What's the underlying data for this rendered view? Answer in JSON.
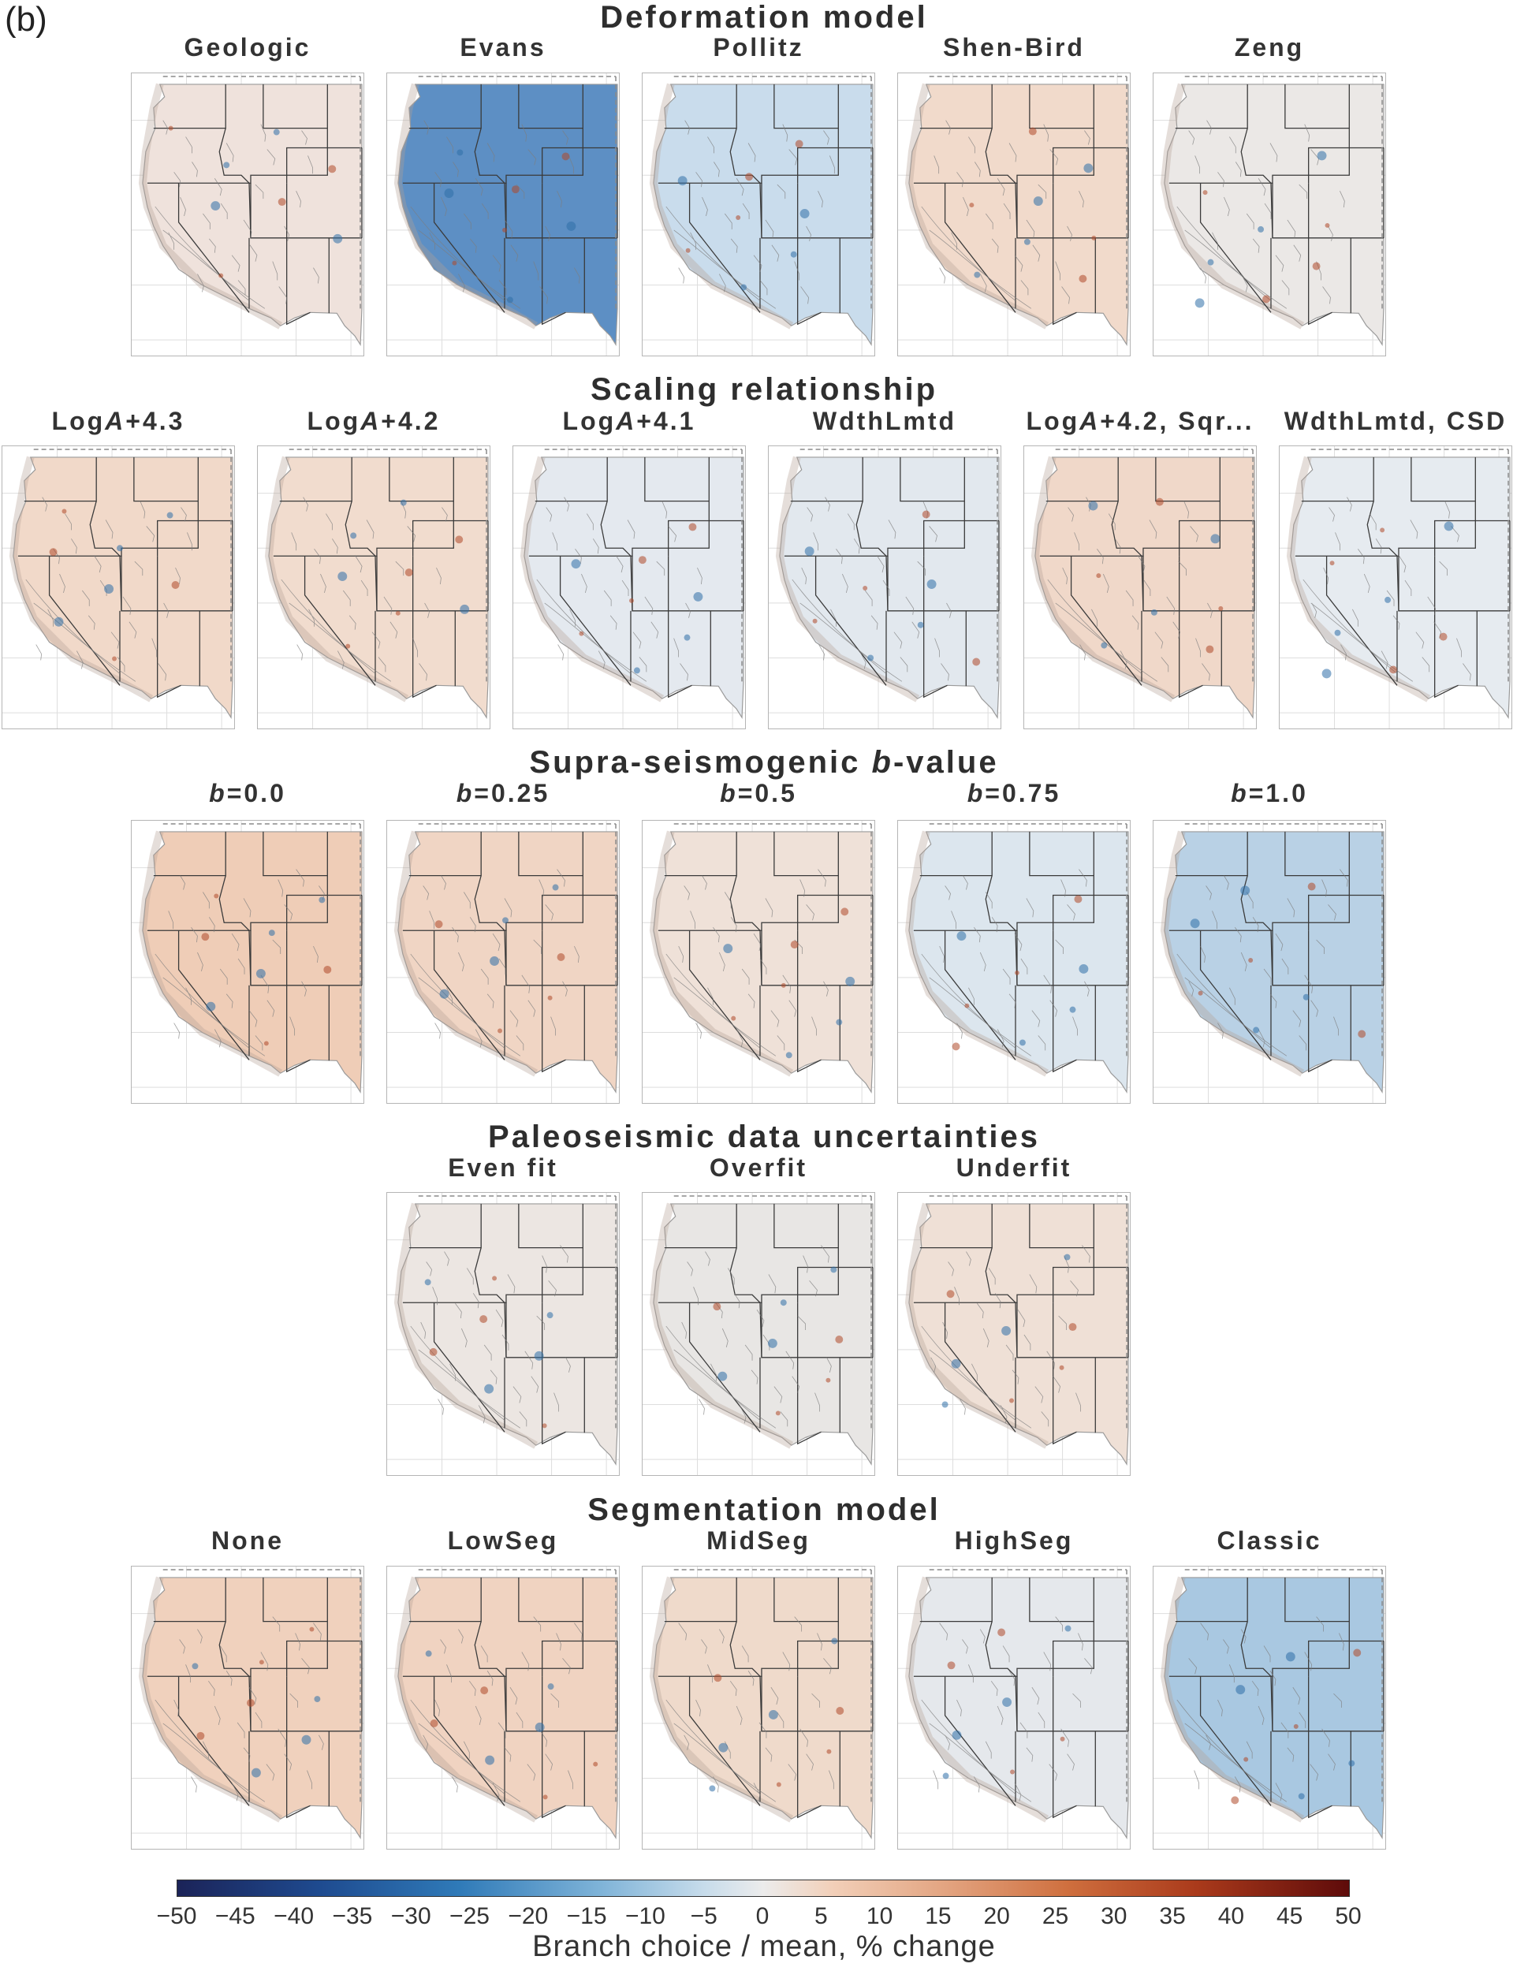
{
  "panel_label": "(b)",
  "groups": [
    {
      "title": "Deformation model",
      "branches": [
        {
          "label": "Geologic",
          "tint": "#efe2dc"
        },
        {
          "label": "Evans",
          "tint": "#5d8fc4"
        },
        {
          "label": "Pollitz",
          "tint": "#c9dcec"
        },
        {
          "label": "Shen-Bird",
          "tint": "#f1dacb"
        },
        {
          "label": "Zeng",
          "tint": "#ebe8e6"
        }
      ]
    },
    {
      "title": "Scaling relationship",
      "branches": [
        {
          "label": "LogA+4.3",
          "tint": "#f1d9c9"
        },
        {
          "label": "LogA+4.2",
          "tint": "#f1dcce"
        },
        {
          "label": "LogA+4.1",
          "tint": "#e4e9ef"
        },
        {
          "label": "WdthLmtd",
          "tint": "#e2e8ee"
        },
        {
          "label": "LogA+4.2, Sqr...",
          "tint": "#f0d8c9"
        },
        {
          "label": "WdthLmtd, CSD",
          "tint": "#e6ebf0"
        }
      ]
    },
    {
      "title": "Supra-seismogenic b-value",
      "branches": [
        {
          "label": "b=0.0",
          "tint": "#efcdb7"
        },
        {
          "label": "b=0.25",
          "tint": "#f0d5c4"
        },
        {
          "label": "b=0.5",
          "tint": "#efe1d8"
        },
        {
          "label": "b=0.75",
          "tint": "#dce6ee"
        },
        {
          "label": "b=1.0",
          "tint": "#b9d1e5"
        }
      ]
    },
    {
      "title": "Paleoseismic data uncertainties",
      "branches": [
        {
          "label": "Even fit",
          "tint": "#ece6e2"
        },
        {
          "label": "Overfit",
          "tint": "#e8e6e4"
        },
        {
          "label": "Underfit",
          "tint": "#efe0d6"
        }
      ]
    },
    {
      "title": "Segmentation model",
      "branches": [
        {
          "label": "None",
          "tint": "#f0d1bd"
        },
        {
          "label": "LowSeg",
          "tint": "#f0d3c1"
        },
        {
          "label": "MidSeg",
          "tint": "#efdacb"
        },
        {
          "label": "HighSeg",
          "tint": "#e5e8ec"
        },
        {
          "label": "Classic",
          "tint": "#a9c8e1"
        }
      ]
    }
  ],
  "colorbar": {
    "ticks": [
      "−50",
      "−45",
      "−40",
      "−35",
      "−30",
      "−25",
      "−20",
      "−15",
      "−10",
      "−5",
      "0",
      "5",
      "10",
      "15",
      "20",
      "25",
      "30",
      "35",
      "40",
      "45",
      "50"
    ],
    "label": "Branch choice / mean, % change",
    "range": [
      -50,
      50
    ],
    "colors": {
      "low": "#1b2358",
      "mid": "#ececec",
      "high": "#5e0b0a"
    }
  }
}
